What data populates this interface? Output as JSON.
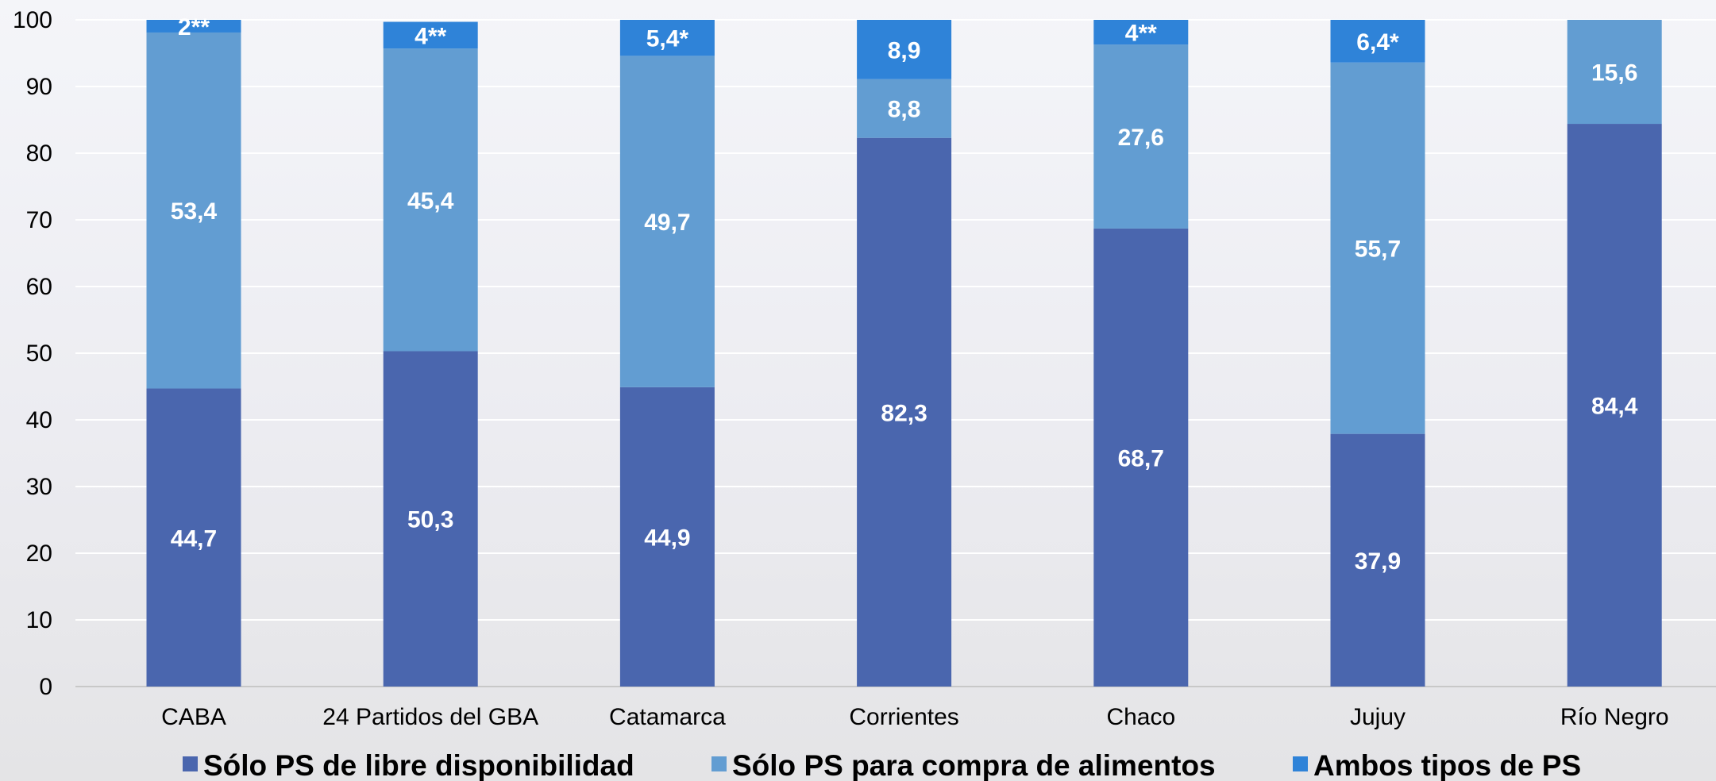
{
  "chart_data": {
    "type": "bar",
    "stacked": true,
    "categories": [
      "CABA",
      "24 Partidos del GBA",
      "Catamarca",
      "Corrientes",
      "Chaco",
      "Jujuy",
      "Río Negro"
    ],
    "series": [
      {
        "name": "Sólo PS de libre disponibilidad",
        "color": "#4a66ae",
        "values": [
          44.7,
          50.3,
          44.9,
          82.3,
          68.7,
          37.9,
          84.4
        ],
        "labels": [
          "44,7",
          "50,3",
          "44,9",
          "82,3",
          "68,7",
          "37,9",
          "84,4"
        ]
      },
      {
        "name": "Sólo PS para compra de alimentos",
        "color": "#629dd2",
        "values": [
          53.4,
          45.4,
          49.7,
          8.8,
          27.6,
          55.7,
          15.6
        ],
        "labels": [
          "53,4",
          "45,4",
          "49,7",
          "8,8",
          "27,6",
          "55,7",
          "15,6"
        ]
      },
      {
        "name": "Ambos tipos de PS",
        "color": "#2f83d8",
        "values": [
          2,
          4,
          5.4,
          8.9,
          4,
          6.4,
          0
        ],
        "labels": [
          "2**",
          "4**",
          "5,4*",
          "8,9",
          "4**",
          "6,4*",
          ""
        ]
      }
    ],
    "yticks": [
      0,
      10,
      20,
      30,
      40,
      50,
      60,
      70,
      80,
      90,
      100
    ],
    "ylim": [
      0,
      100
    ],
    "title": "",
    "xlabel": "",
    "ylabel": "",
    "grid": true,
    "legend_position": "bottom"
  }
}
